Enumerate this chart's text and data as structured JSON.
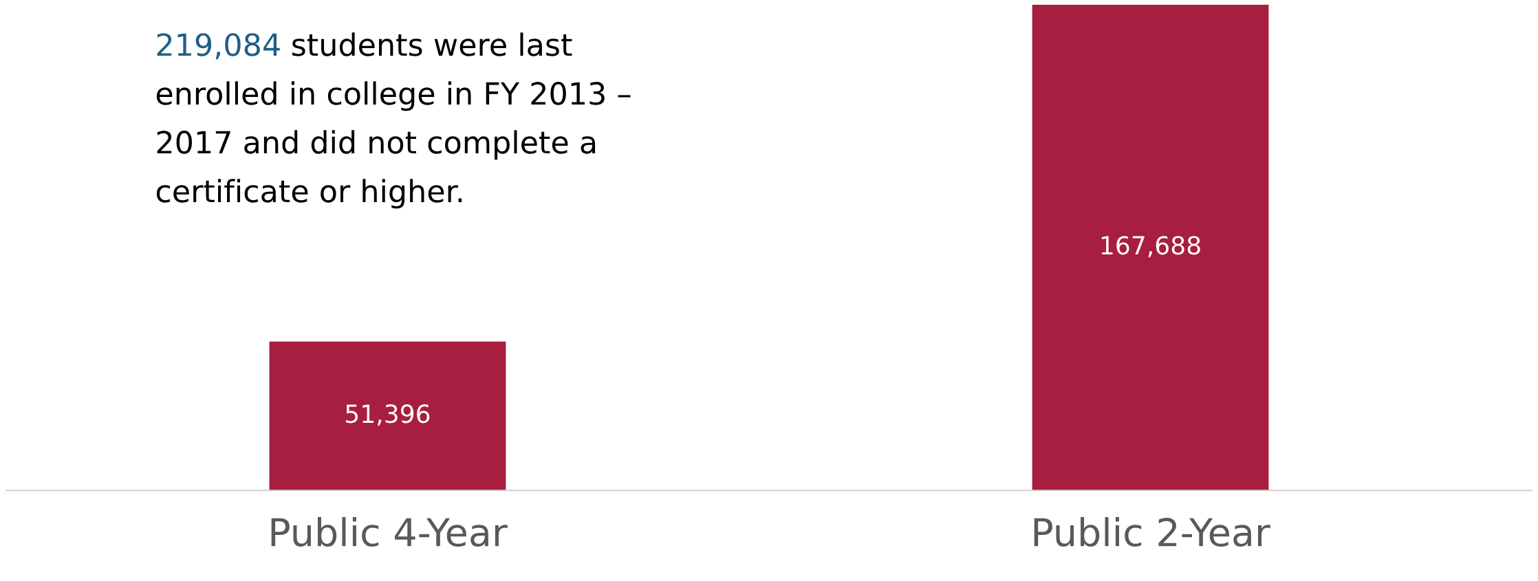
{
  "chart_data": {
    "type": "bar",
    "categories": [
      "Public 4-Year",
      "Public 2-Year"
    ],
    "values": [
      51396,
      167688
    ],
    "color": "#a81e40",
    "value_labels": [
      "51,396",
      "167,688"
    ],
    "annotations": [
      "219,084",
      "students were last\nenrolled in college in FY 2013 –\n2017 and did not complete a\ncertificate or higher."
    ]
  }
}
